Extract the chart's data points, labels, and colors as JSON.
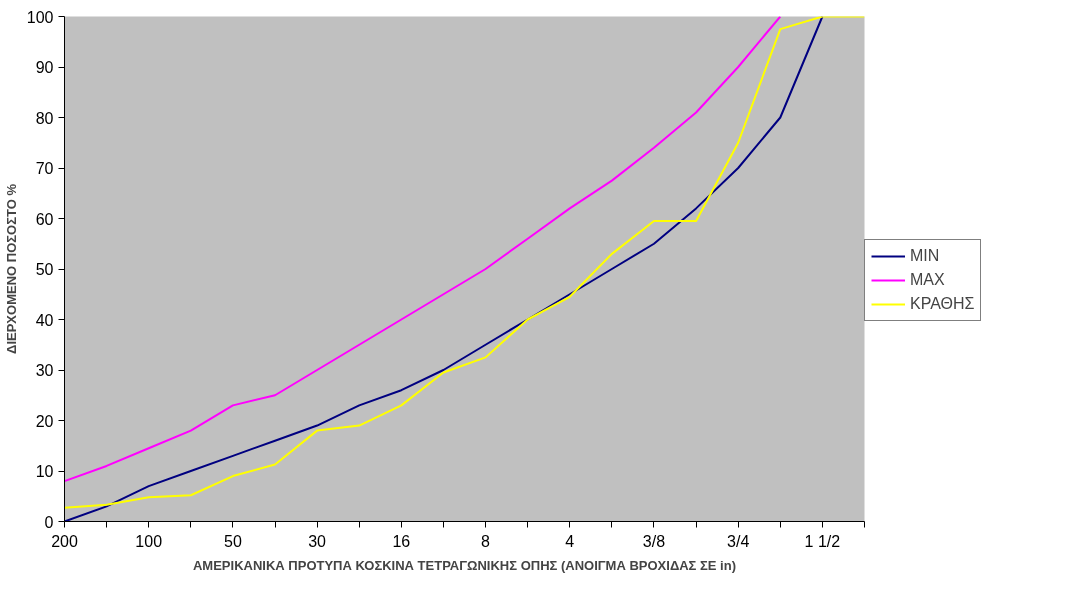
{
  "chart_data": {
    "type": "line",
    "xlabel": "ΑΜΕΡΙΚΑΝΙΚΑ ΠΡΟΤΥΠΑ ΚΟΣΚΙΝΑ ΤΕΤΡΑΓΩΝΙΚΗΣ ΟΠΗΣ (ΑΝΟΙΓΜΑ ΒΡΟΧΙΔΑΣ ΣΕ in)",
    "ylabel": "ΔΙΕΡΧΟΜΕΝΟ ΠΟΣΟΣΤΟ %",
    "categories": [
      "200",
      null,
      "100",
      null,
      "50",
      null,
      "30",
      null,
      "16",
      null,
      "8",
      null,
      "4",
      null,
      "3/8",
      null,
      "3/4",
      null,
      "1 1/2",
      null
    ],
    "series": [
      {
        "name": "MIN",
        "color": "#000080",
        "values": [
          0,
          3,
          7,
          10,
          13,
          16,
          19,
          23,
          26,
          30,
          35,
          40,
          45,
          50,
          55,
          62,
          70,
          80,
          100,
          null
        ]
      },
      {
        "name": "MAX",
        "color": "#ff00ff",
        "values": [
          8,
          11,
          14.5,
          18,
          23,
          25,
          30,
          35,
          40,
          45,
          50,
          56,
          62,
          67.5,
          74,
          81,
          90,
          100,
          null,
          null
        ]
      },
      {
        "name": "ΚΡΑΘΗΣ",
        "color": "#ffff00",
        "values": [
          2.7,
          3.3,
          4.8,
          5.2,
          9,
          11.3,
          18,
          19,
          23,
          29.5,
          32.5,
          40,
          44.5,
          53,
          59.5,
          59.5,
          75,
          97.5,
          100,
          100
        ]
      }
    ],
    "ylim": [
      0,
      100
    ],
    "yticks": [
      0,
      10,
      20,
      30,
      40,
      50,
      60,
      70,
      80,
      90,
      100
    ],
    "grid": false,
    "legend": "right",
    "marker": "none",
    "line_style": "solid"
  }
}
